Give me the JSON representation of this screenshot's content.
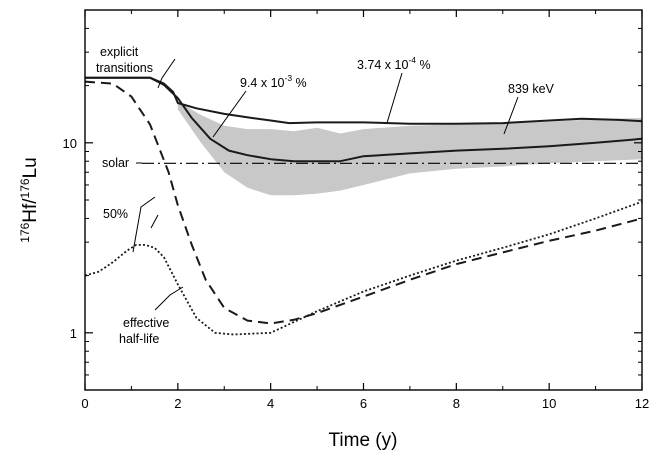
{
  "chart_data": {
    "type": "line",
    "xlabel": "Time (y)",
    "ylabel": {
      "prefix": "176",
      "a": "Hf/",
      "sup2": "176",
      "b": "Lu"
    },
    "xlim": [
      0,
      12
    ],
    "ylim": [
      0.5,
      50
    ],
    "yscale": "log",
    "x_ticks": [
      0,
      2,
      4,
      6,
      8,
      10,
      12
    ],
    "y_ticks": [
      1,
      10
    ],
    "solar_value": 7.8,
    "series": [
      {
        "name": "upper",
        "style": "solid",
        "x": [
          0,
          1.4,
          1.7,
          1.9,
          2.0,
          2.4,
          3.0,
          3.6,
          4.0,
          4.4,
          5.0,
          6.0,
          7.0,
          8.0,
          9.0,
          10.0,
          10.7,
          11.5,
          12.0
        ],
        "y": [
          22,
          22,
          20.5,
          18.5,
          16.2,
          15.2,
          14.2,
          13.5,
          13.1,
          12.7,
          12.8,
          12.8,
          12.6,
          12.6,
          12.7,
          13.1,
          13.4,
          13.2,
          13.0
        ]
      },
      {
        "name": "lower",
        "style": "solid",
        "x": [
          0,
          1.4,
          1.7,
          2.0,
          2.3,
          2.7,
          3.1,
          3.5,
          4.0,
          4.5,
          5.0,
          5.5,
          6.0,
          7.0,
          8.0,
          9.0,
          10.0,
          11.0,
          12.0
        ],
        "y": [
          22,
          22,
          20.2,
          17.2,
          13.5,
          10.5,
          9.1,
          8.6,
          8.2,
          8.0,
          8.0,
          8.0,
          8.5,
          8.8,
          9.1,
          9.3,
          9.6,
          10.0,
          10.5
        ]
      },
      {
        "name": "50%",
        "style": "dashed",
        "x": [
          0,
          0.6,
          1.0,
          1.4,
          1.8,
          2.0,
          2.3,
          2.6,
          3.0,
          3.5,
          4.0,
          4.5,
          5.0,
          6.0,
          7.0,
          8.0,
          9.0,
          10.0,
          11.0,
          12.0
        ],
        "y": [
          21,
          20.5,
          17.5,
          12.5,
          7.0,
          4.7,
          2.9,
          1.9,
          1.35,
          1.16,
          1.12,
          1.17,
          1.27,
          1.55,
          1.9,
          2.3,
          2.65,
          3.05,
          3.45,
          4.0
        ]
      },
      {
        "name": "effective half-life",
        "style": "dotted",
        "x": [
          0,
          0.3,
          0.6,
          0.9,
          1.1,
          1.3,
          1.5,
          1.7,
          2.0,
          2.4,
          2.8,
          3.2,
          4.0,
          5.0,
          6.0,
          7.0,
          8.0,
          9.0,
          10.0,
          11.0,
          12.0
        ],
        "y": [
          2.0,
          2.1,
          2.35,
          2.7,
          2.9,
          2.9,
          2.8,
          2.5,
          1.8,
          1.2,
          1.0,
          0.98,
          1.0,
          1.3,
          1.65,
          2.0,
          2.4,
          2.8,
          3.3,
          4.0,
          4.9
        ]
      }
    ],
    "band": {
      "name": "range",
      "x": [
        2.0,
        2.5,
        3.0,
        3.5,
        4.0,
        4.5,
        5.0,
        5.5,
        6.0,
        7.0,
        8.0,
        9.0,
        10.0,
        11.0,
        12.0
      ],
      "upper": [
        16.5,
        14.0,
        12.3,
        11.8,
        11.8,
        11.5,
        12.0,
        11.2,
        11.8,
        12.3,
        12.5,
        12.6,
        12.9,
        13.3,
        13.5
      ],
      "lower": [
        15.0,
        10.0,
        7.0,
        5.8,
        5.3,
        5.3,
        5.4,
        5.6,
        6.0,
        6.9,
        7.3,
        7.5,
        7.8,
        8.0,
        8.2
      ]
    },
    "annotations": {
      "explicit1": "explicit",
      "explicit2": "transitions",
      "pct1_base": "9.4 x 10",
      "pct1_exp": "-3",
      "pct1_unit": " %",
      "pct2_base": "3.74 x 10",
      "pct2_exp": "-4",
      "pct2_unit": " %",
      "kev": "839 keV",
      "solar": "solar",
      "fifty": "50%",
      "eff1": "effective",
      "eff2": "half-life"
    }
  },
  "colors": {
    "band": "#c8c8c8",
    "line": "#1a1a1a",
    "axis": "#000000"
  }
}
